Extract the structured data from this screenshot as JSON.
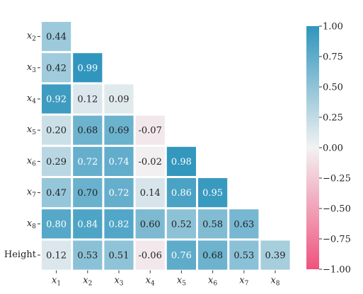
{
  "chart_data": {
    "type": "heatmap",
    "title": "",
    "xlabel": "",
    "ylabel": "",
    "mask": "lower-triangle",
    "x_labels": [
      {
        "base": "x",
        "sub": "1"
      },
      {
        "base": "x",
        "sub": "2"
      },
      {
        "base": "x",
        "sub": "3"
      },
      {
        "base": "x",
        "sub": "4"
      },
      {
        "base": "x",
        "sub": "5"
      },
      {
        "base": "x",
        "sub": "6"
      },
      {
        "base": "x",
        "sub": "7"
      },
      {
        "base": "x",
        "sub": "8"
      }
    ],
    "y_labels": [
      {
        "base": "x",
        "sub": "2"
      },
      {
        "base": "x",
        "sub": "3"
      },
      {
        "base": "x",
        "sub": "4"
      },
      {
        "base": "x",
        "sub": "5"
      },
      {
        "base": "x",
        "sub": "6"
      },
      {
        "base": "x",
        "sub": "7"
      },
      {
        "base": "x",
        "sub": "8"
      },
      {
        "base": "Height",
        "sub": ""
      }
    ],
    "values": [
      [
        0.44
      ],
      [
        0.42,
        0.99
      ],
      [
        0.92,
        0.12,
        0.09
      ],
      [
        0.2,
        0.68,
        0.69,
        -0.07
      ],
      [
        0.29,
        0.72,
        0.74,
        -0.02,
        0.98
      ],
      [
        0.47,
        0.7,
        0.72,
        0.14,
        0.86,
        0.95
      ],
      [
        0.8,
        0.84,
        0.82,
        0.6,
        0.52,
        0.58,
        0.63
      ],
      [
        0.12,
        0.53,
        0.51,
        -0.06,
        0.76,
        0.68,
        0.53,
        0.39
      ]
    ],
    "value_labels": [
      [
        "0.44"
      ],
      [
        "0.42",
        "0.99"
      ],
      [
        "0.92",
        "0.12",
        "0.09"
      ],
      [
        "0.20",
        "0.68",
        "0.69",
        "-0.07"
      ],
      [
        "0.29",
        "0.72",
        "0.74",
        "-0.02",
        "0.98"
      ],
      [
        "0.47",
        "0.70",
        "0.72",
        "0.14",
        "0.86",
        "0.95"
      ],
      [
        "0.80",
        "0.84",
        "0.82",
        "0.60",
        "0.52",
        "0.58",
        "0.63"
      ],
      [
        "0.12",
        "0.53",
        "0.51",
        "-0.06",
        "0.76",
        "0.68",
        "0.53",
        "0.39"
      ]
    ],
    "colorbar": {
      "vmin": -1.0,
      "vmax": 1.0,
      "ticks": [
        1.0,
        0.75,
        0.5,
        0.25,
        0.0,
        -0.25,
        -0.5,
        -0.75,
        -1.0
      ],
      "tick_labels": [
        "1.00",
        "0.75",
        "0.50",
        "0.25",
        "0.00",
        "−0.25",
        "−0.50",
        "−0.75",
        "−1.00"
      ]
    },
    "colors": {
      "negative": "#f0527e",
      "center": "#f2f2f2",
      "positive": "#2f95bd"
    },
    "grid": false,
    "legend": "colorbar-right"
  }
}
